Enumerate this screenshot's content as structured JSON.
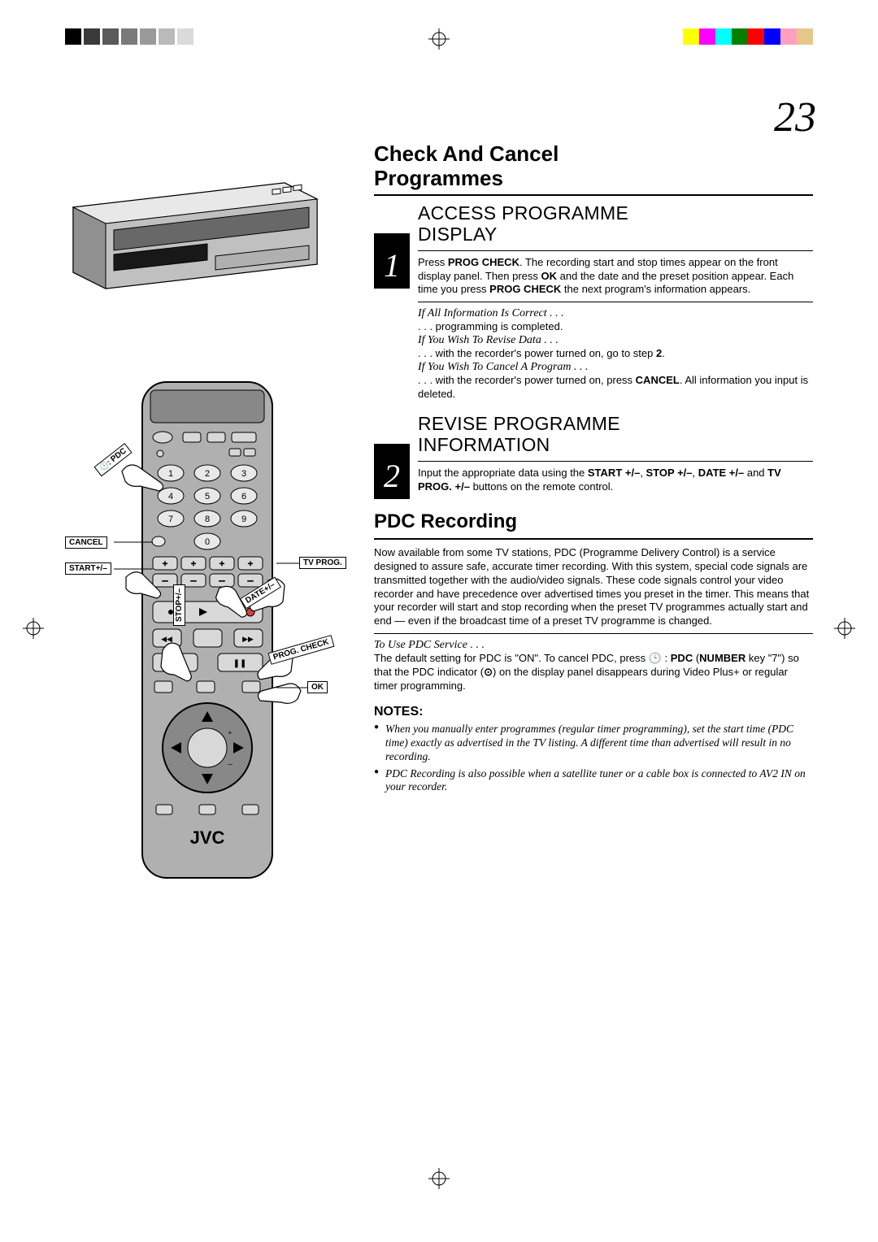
{
  "page_number": "23",
  "print_marks": {
    "gray_bars": [
      "#000000",
      "#3a3a3a",
      "#5a5a5a",
      "#7a7a7a",
      "#9a9a9a",
      "#bababa",
      "#dadada"
    ],
    "color_bars": [
      "#ffff00",
      "#ff00ff",
      "#00ffff",
      "#008000",
      "#ff0000",
      "#0000ff",
      "#ffa0c0",
      "#e6c78a"
    ]
  },
  "section_title_lines": [
    "Check And Cancel",
    "Programmes"
  ],
  "step1": {
    "num": "1",
    "heading_lines": [
      "ACCESS PROGRAMME",
      "DISPLAY"
    ],
    "body_html": "Press <b>PROG CHECK</b>. The recording start and stop times appear on the front display panel. Then press <b>OK</b> and the date and the preset position appear. Each time you press <b>PROG CHECK</b> the next program's information appears.",
    "sub1_title": "If All Information Is Correct . . .",
    "sub1_body": ". . . programming is completed.",
    "sub2_title": "If You Wish To Revise Data . . .",
    "sub2_body_html": ". . . with the recorder's power turned on, go to step <b>2</b>.",
    "sub3_title": "If You Wish To Cancel A Program . . .",
    "sub3_body_html": ". . . with the recorder's power turned on, press <b>CANCEL</b>. All information you input is deleted."
  },
  "step2": {
    "num": "2",
    "heading_lines": [
      "REVISE PROGRAMME",
      "INFORMATION"
    ],
    "body_html": "Input the appropriate data using the <b>START +/–</b>, <b>STOP +/–</b>, <b>DATE +/–</b> and <b>TV PROG. +/–</b> buttons on the remote control."
  },
  "pdc": {
    "title": "PDC Recording",
    "body": "Now available from some TV stations, PDC (Programme Delivery Control) is a service designed to assure safe, accurate timer recording. With this system, special code signals are transmitted together with the audio/video signals. These code signals control your video recorder and have precedence over advertised times you preset in the timer. This means that your recorder will start and stop recording when the preset TV programmes actually start and end — even if the broadcast time of a preset TV programme is changed.",
    "sub_title": "To Use PDC Service . . .",
    "sub_body_html": "The default setting for PDC is \"ON\". To cancel PDC, press 🕒 : <b>PDC</b> (<b>NUMBER</b> key \"7\") so that the PDC indicator (<b>⊙</b>) on the display panel disappears during Video Plus+ or regular timer programming."
  },
  "notes": {
    "title": "NOTES:",
    "items": [
      "When you manually enter programmes (regular timer programming), set the start time (PDC time) exactly as advertised in the TV listing. A different time than advertised will result in no recording.",
      "PDC Recording is also possible when a satellite tuner or a cable box is connected to AV2 IN on your recorder."
    ]
  },
  "remote_labels": {
    "pdc": ": PDC",
    "cancel": "CANCEL",
    "start": "START+/–",
    "tvprog": "TV PROG.",
    "date": "DATE+/–",
    "stop": "STOP+/–",
    "progcheck": "PROG. CHECK",
    "ok": "OK",
    "brand": "JVC"
  }
}
